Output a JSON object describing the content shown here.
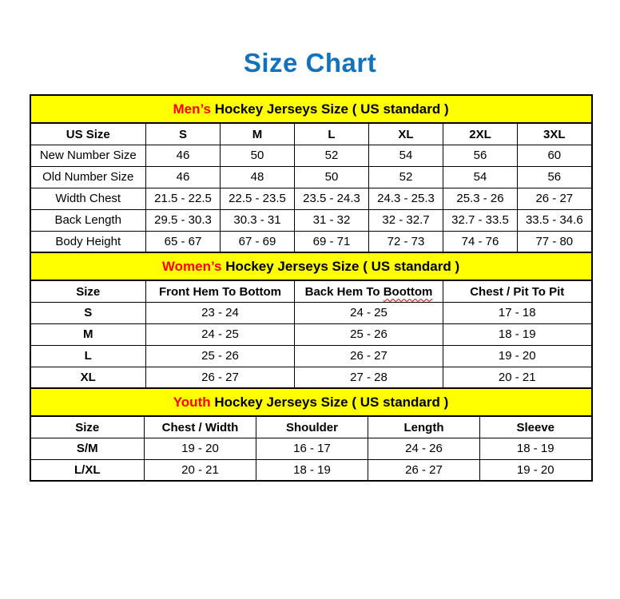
{
  "page": {
    "title": "Size Chart"
  },
  "colors": {
    "title_blue": "#1272bb",
    "accent_red": "#ff0000",
    "band_yellow": "#ffff00",
    "border_black": "#000000",
    "spellcheck_red": "#c00000"
  },
  "chart_data": [
    {
      "type": "table",
      "title_highlight": "Men’s",
      "title_rest": " Hockey Jerseys Size ( US standard )",
      "columns": [
        "US Size",
        "S",
        "M",
        "L",
        "XL",
        "2XL",
        "3XL"
      ],
      "rows": [
        {
          "label": "New Number Size",
          "values": [
            "46",
            "50",
            "52",
            "54",
            "56",
            "60"
          ]
        },
        {
          "label": "Old Number Size",
          "values": [
            "46",
            "48",
            "50",
            "52",
            "54",
            "56"
          ]
        },
        {
          "label": "Width Chest",
          "values": [
            "21.5 - 22.5",
            "22.5 - 23.5",
            "23.5 - 24.3",
            "24.3 - 25.3",
            "25.3 - 26",
            "26 - 27"
          ]
        },
        {
          "label": "Back Length",
          "values": [
            "29.5 - 30.3",
            "30.3 - 31",
            "31 - 32",
            "32 - 32.7",
            "32.7 - 33.5",
            "33.5 - 34.6"
          ]
        },
        {
          "label": "Body Height",
          "values": [
            "65 - 67",
            "67 - 69",
            "69 - 71",
            "72 - 73",
            "74 - 76",
            "77 - 80"
          ]
        }
      ]
    },
    {
      "type": "table",
      "title_highlight": "Women’s",
      "title_rest": " Hockey Jerseys Size ( US standard )",
      "columns": [
        "Size",
        "Front Hem To Bottom",
        "Back Hem To Boottom",
        "Chest / Pit To Pit"
      ],
      "wavy_column": {
        "index": 2,
        "prefix": "Back Hem To ",
        "word": "Boottom"
      },
      "rows": [
        {
          "label": "S",
          "values": [
            "23 - 24",
            "24 - 25",
            "17 - 18"
          ]
        },
        {
          "label": "M",
          "values": [
            "24 - 25",
            "25 - 26",
            "18 - 19"
          ]
        },
        {
          "label": "L",
          "values": [
            "25 - 26",
            "26 - 27",
            "19 - 20"
          ]
        },
        {
          "label": "XL",
          "values": [
            "26 - 27",
            "27 - 28",
            "20 - 21"
          ]
        }
      ]
    },
    {
      "type": "table",
      "title_highlight": "Youth",
      "title_rest": " Hockey Jerseys Size ( US standard )",
      "columns": [
        "Size",
        "Chest / Width",
        "Shoulder",
        "Length",
        "Sleeve"
      ],
      "rows": [
        {
          "label": "S/M",
          "values": [
            "19 - 20",
            "16 - 17",
            "24 - 26",
            "18 - 19"
          ]
        },
        {
          "label": "L/XL",
          "values": [
            "20 - 21",
            "18 - 19",
            "26 - 27",
            "19 - 20"
          ]
        }
      ]
    }
  ]
}
